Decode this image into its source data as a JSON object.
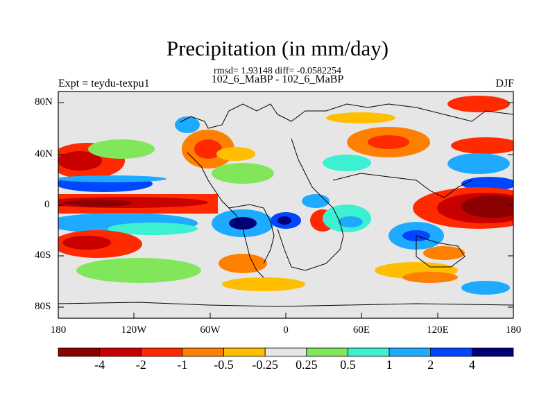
{
  "title": "Precipitation (in mm/day)",
  "stats": "rmsd= 1.93148 diff= -0.0582254",
  "subtitle_center": "102_6_MaBP - 102_6_MaBP",
  "subtitle_left": "Expt = teydu-texpu1",
  "subtitle_right": "DJF",
  "lat_labels": [
    "80N",
    "40N",
    "0",
    "40S",
    "80S"
  ],
  "lon_labels": [
    "180",
    "120W",
    "60W",
    "0",
    "60E",
    "120E",
    "180"
  ],
  "colorbar": {
    "labels": [
      "-4",
      "-2",
      "-1",
      "-0.5",
      "-0.25",
      "0.25",
      "0.5",
      "1",
      "2",
      "4"
    ],
    "colors": [
      "#8b0000",
      "#c80000",
      "#ff2a00",
      "#ff7f00",
      "#ffbe00",
      "#e6e6e6",
      "#82e65a",
      "#3cf0d2",
      "#1eaaff",
      "#0046ff",
      "#000078"
    ]
  },
  "palette": {
    "dark_red": "#8b0000",
    "red": "#c80000",
    "orange_red": "#ff2a00",
    "orange": "#ff7f00",
    "yellow_orange": "#ffbe00",
    "gray": "#e6e6e6",
    "green": "#82e65a",
    "cyan": "#3cf0d2",
    "light_blue": "#1eaaff",
    "blue": "#0046ff",
    "navy": "#000078"
  }
}
